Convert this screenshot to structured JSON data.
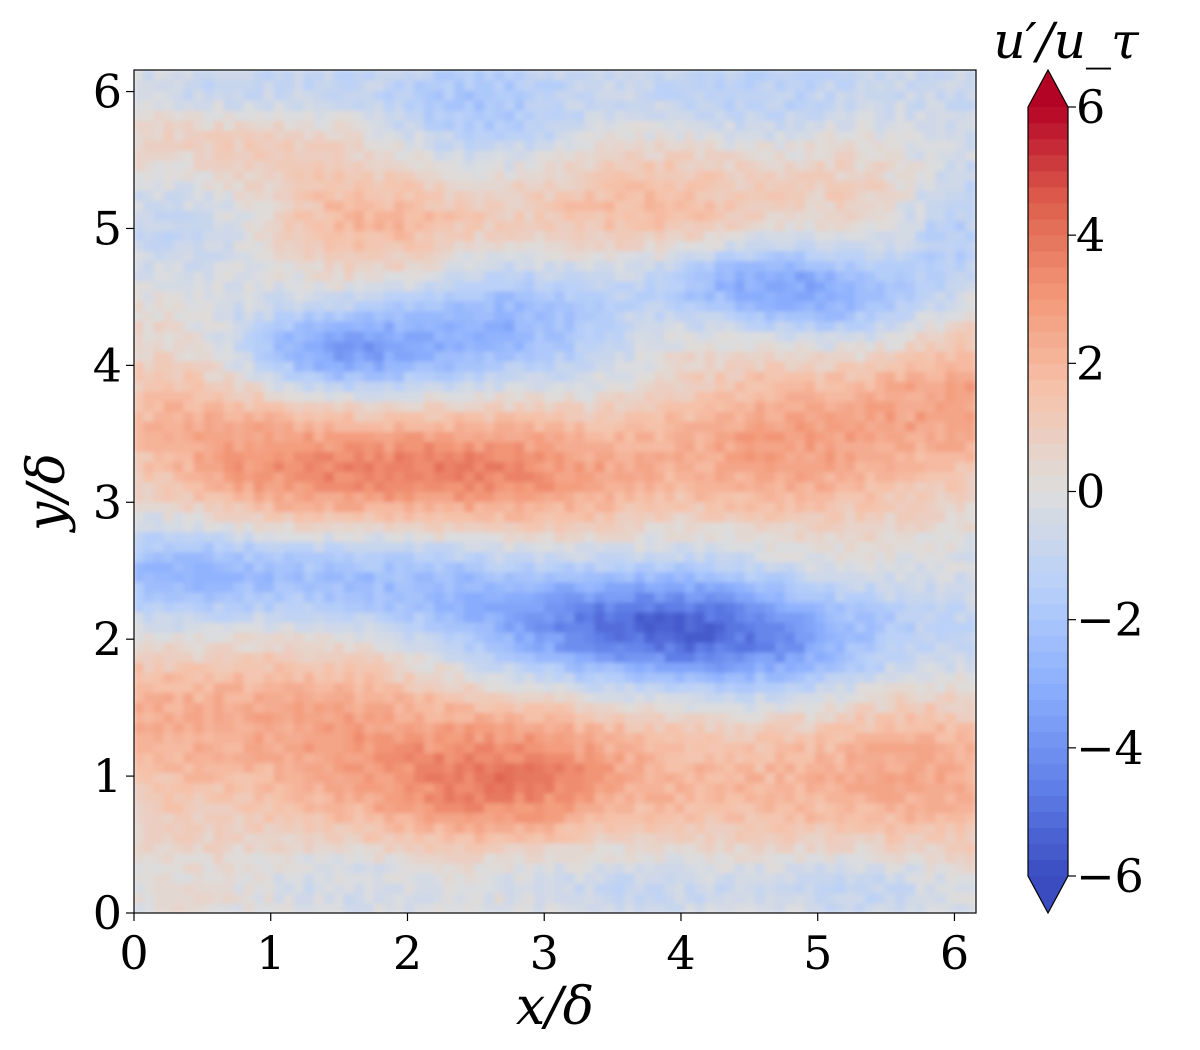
{
  "chart_data": {
    "type": "heatmap",
    "title": "",
    "xlabel": "x/δ",
    "ylabel": "y/δ",
    "colorbar_label": "u′/u_τ",
    "colormap": "coolwarm",
    "colormap_colors": {
      "low": "#3b4cc0",
      "mid": "#dddddd",
      "high": "#b40426"
    },
    "xlim": [
      0,
      6.1575
    ],
    "ylim": [
      0,
      6.1575
    ],
    "clim": [
      -6,
      6
    ],
    "x_ticks": [
      0,
      1,
      2,
      3,
      4,
      5,
      6
    ],
    "x_tick_labels": [
      "0",
      "1",
      "2",
      "3",
      "4",
      "5",
      "6"
    ],
    "y_ticks": [
      0,
      1,
      2,
      3,
      4,
      5,
      6
    ],
    "y_tick_labels": [
      "0",
      "1",
      "2",
      "3",
      "4",
      "5",
      "6"
    ],
    "colorbar_ticks": [
      -6,
      -4,
      -2,
      0,
      2,
      4,
      6
    ],
    "colorbar_tick_labels": [
      "−6",
      "−4",
      "−2",
      "0",
      "2",
      "4",
      "6"
    ],
    "colorbar_extend": "both",
    "grid": false,
    "field_structures": [
      {
        "x": 0.6,
        "y": 1.5,
        "value": 2.2,
        "sx": 1.2,
        "sy": 0.35
      },
      {
        "x": 2.9,
        "y": 1.0,
        "value": 3.2,
        "sx": 0.6,
        "sy": 0.4
      },
      {
        "x": 5.4,
        "y": 1.0,
        "value": 2.5,
        "sx": 1.1,
        "sy": 0.45
      },
      {
        "x": 1.5,
        "y": 0.9,
        "value": 1.8,
        "sx": 0.9,
        "sy": 0.4
      },
      {
        "x": 3.5,
        "y": 2.1,
        "value": -4.0,
        "sx": 0.75,
        "sy": 0.3
      },
      {
        "x": 4.7,
        "y": 2.0,
        "value": -3.2,
        "sx": 0.9,
        "sy": 0.3
      },
      {
        "x": 0.5,
        "y": 2.5,
        "value": -2.4,
        "sx": 0.9,
        "sy": 0.25
      },
      {
        "x": 2.0,
        "y": 2.4,
        "value": -1.6,
        "sx": 0.8,
        "sy": 0.25
      },
      {
        "x": 1.8,
        "y": 3.2,
        "value": 2.8,
        "sx": 0.9,
        "sy": 0.3
      },
      {
        "x": 3.8,
        "y": 3.3,
        "value": 2.2,
        "sx": 1.4,
        "sy": 0.35
      },
      {
        "x": 5.8,
        "y": 3.8,
        "value": 2.6,
        "sx": 0.9,
        "sy": 0.45
      },
      {
        "x": 0.4,
        "y": 3.6,
        "value": 1.6,
        "sx": 0.9,
        "sy": 0.4
      },
      {
        "x": 1.5,
        "y": 4.1,
        "value": -3.4,
        "sx": 0.55,
        "sy": 0.22
      },
      {
        "x": 2.6,
        "y": 4.3,
        "value": -2.8,
        "sx": 0.6,
        "sy": 0.35
      },
      {
        "x": 4.5,
        "y": 4.6,
        "value": -3.2,
        "sx": 0.6,
        "sy": 0.22
      },
      {
        "x": 5.3,
        "y": 4.4,
        "value": -2.0,
        "sx": 0.5,
        "sy": 0.3
      },
      {
        "x": 0.3,
        "y": 5.0,
        "value": -2.0,
        "sx": 0.6,
        "sy": 0.3
      },
      {
        "x": 1.3,
        "y": 5.0,
        "value": 1.6,
        "sx": 1.0,
        "sy": 0.3
      },
      {
        "x": 3.8,
        "y": 5.2,
        "value": 1.6,
        "sx": 1.4,
        "sy": 0.35
      },
      {
        "x": 2.7,
        "y": 5.85,
        "value": -1.8,
        "sx": 0.6,
        "sy": 0.35
      },
      {
        "x": 1.0,
        "y": 6.0,
        "value": -1.6,
        "sx": 0.7,
        "sy": 0.2
      },
      {
        "x": 4.8,
        "y": 6.0,
        "value": -1.4,
        "sx": 0.9,
        "sy": 0.25
      },
      {
        "x": 0.6,
        "y": 5.7,
        "value": 1.4,
        "sx": 0.7,
        "sy": 0.25
      },
      {
        "x": 6.0,
        "y": 5.0,
        "value": -2.0,
        "sx": 0.3,
        "sy": 0.4
      },
      {
        "x": 2.5,
        "y": 0.3,
        "value": -1.0,
        "sx": 1.2,
        "sy": 0.2
      },
      {
        "x": 5.0,
        "y": 0.2,
        "value": -1.2,
        "sx": 1.0,
        "sy": 0.2
      }
    ]
  }
}
